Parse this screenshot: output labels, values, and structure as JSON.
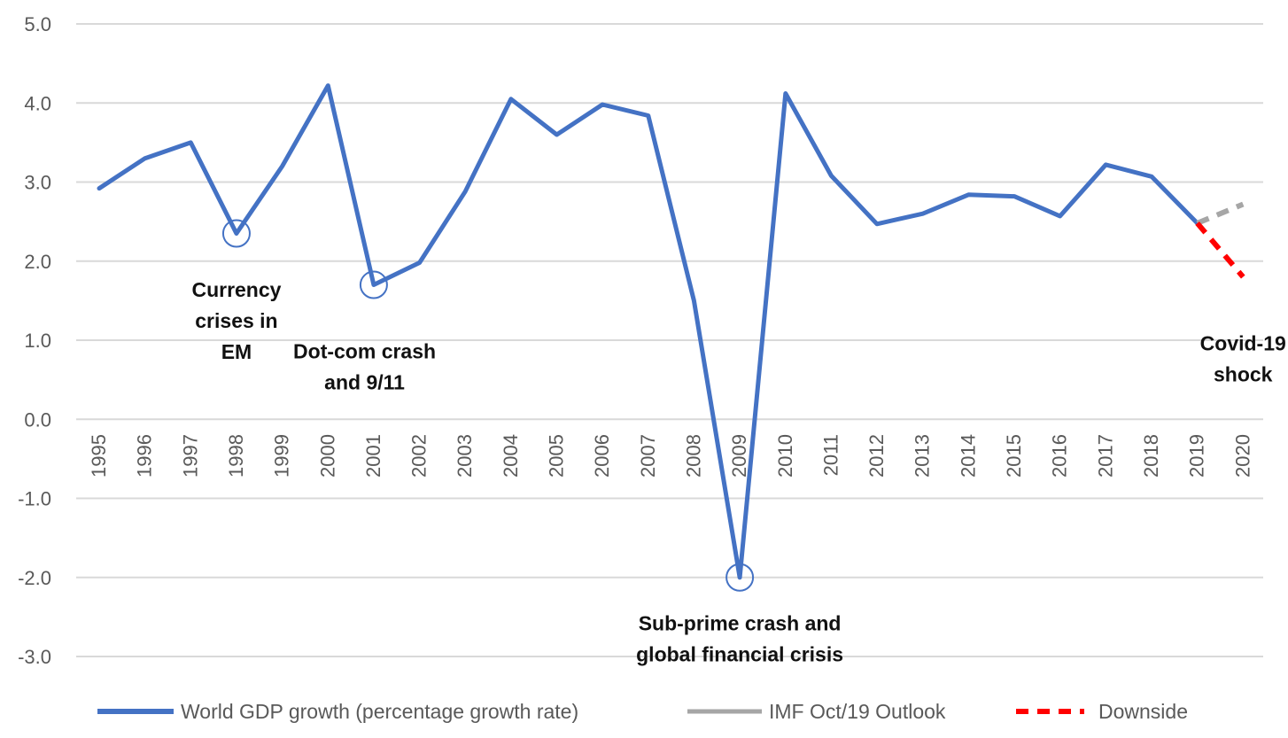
{
  "chart_data": {
    "type": "line",
    "x": [
      "1995",
      "1996",
      "1997",
      "1998",
      "1999",
      "2000",
      "2001",
      "2002",
      "2003",
      "2004",
      "2005",
      "2006",
      "2007",
      "2008",
      "2009",
      "2010",
      "2011",
      "2012",
      "2013",
      "2014",
      "2015",
      "2016",
      "2017",
      "2018",
      "2019",
      "2020"
    ],
    "ylim": [
      -3.0,
      5.0
    ],
    "yticks": [
      "5.0",
      "4.0",
      "3.0",
      "2.0",
      "1.0",
      "0.0",
      "-1.0",
      "-2.0",
      "-3.0"
    ],
    "grid": true,
    "legend_position": "bottom",
    "series": [
      {
        "name": "World GDP growth (percentage growth rate)",
        "color": "#4472C4",
        "style": "solid",
        "points": [
          {
            "x": "1995",
            "y": 2.92
          },
          {
            "x": "1996",
            "y": 3.3
          },
          {
            "x": "1997",
            "y": 3.5
          },
          {
            "x": "1998",
            "y": 2.35
          },
          {
            "x": "1999",
            "y": 3.2
          },
          {
            "x": "2000",
            "y": 4.22
          },
          {
            "x": "2001",
            "y": 1.7
          },
          {
            "x": "2002",
            "y": 1.98
          },
          {
            "x": "2003",
            "y": 2.88
          },
          {
            "x": "2004",
            "y": 4.05
          },
          {
            "x": "2005",
            "y": 3.6
          },
          {
            "x": "2006",
            "y": 3.98
          },
          {
            "x": "2007",
            "y": 3.84
          },
          {
            "x": "2008",
            "y": 1.5
          },
          {
            "x": "2009",
            "y": -2.0
          },
          {
            "x": "2010",
            "y": 4.12
          },
          {
            "x": "2011",
            "y": 3.08
          },
          {
            "x": "2012",
            "y": 2.47
          },
          {
            "x": "2013",
            "y": 2.6
          },
          {
            "x": "2014",
            "y": 2.84
          },
          {
            "x": "2015",
            "y": 2.82
          },
          {
            "x": "2016",
            "y": 2.57
          },
          {
            "x": "2017",
            "y": 3.22
          },
          {
            "x": "2018",
            "y": 3.07
          },
          {
            "x": "2019",
            "y": 2.48
          }
        ]
      },
      {
        "name": "IMF Oct/19 Outlook",
        "color": "#A6A6A6",
        "style": "dashed",
        "points": [
          {
            "x": "2019",
            "y": 2.48
          },
          {
            "x": "2020",
            "y": 2.72
          }
        ]
      },
      {
        "name": "Downside",
        "color": "#FF0000",
        "style": "dashed",
        "points": [
          {
            "x": "2019",
            "y": 2.48
          },
          {
            "x": "2020",
            "y": 1.8
          }
        ]
      }
    ],
    "highlighted_points": [
      {
        "x": "1998",
        "y": 2.35
      },
      {
        "x": "2001",
        "y": 1.7
      },
      {
        "x": "2009",
        "y": -2.0
      }
    ],
    "annotations": [
      {
        "id": "em",
        "lines": [
          "Currency",
          "crises in",
          "EM"
        ],
        "x": "1998",
        "y": 1.55
      },
      {
        "id": "dotcom",
        "lines": [
          "Dot-com crash",
          "and 9/11"
        ],
        "x": "2000.8",
        "y": 0.77
      },
      {
        "id": "subprime",
        "lines": [
          "Sub-prime  crash and",
          "global financial crisis"
        ],
        "x": "2009",
        "y": -2.67
      },
      {
        "id": "covid",
        "lines": [
          "Covid-19",
          "shock"
        ],
        "x": "2020",
        "y": 0.87
      }
    ]
  }
}
